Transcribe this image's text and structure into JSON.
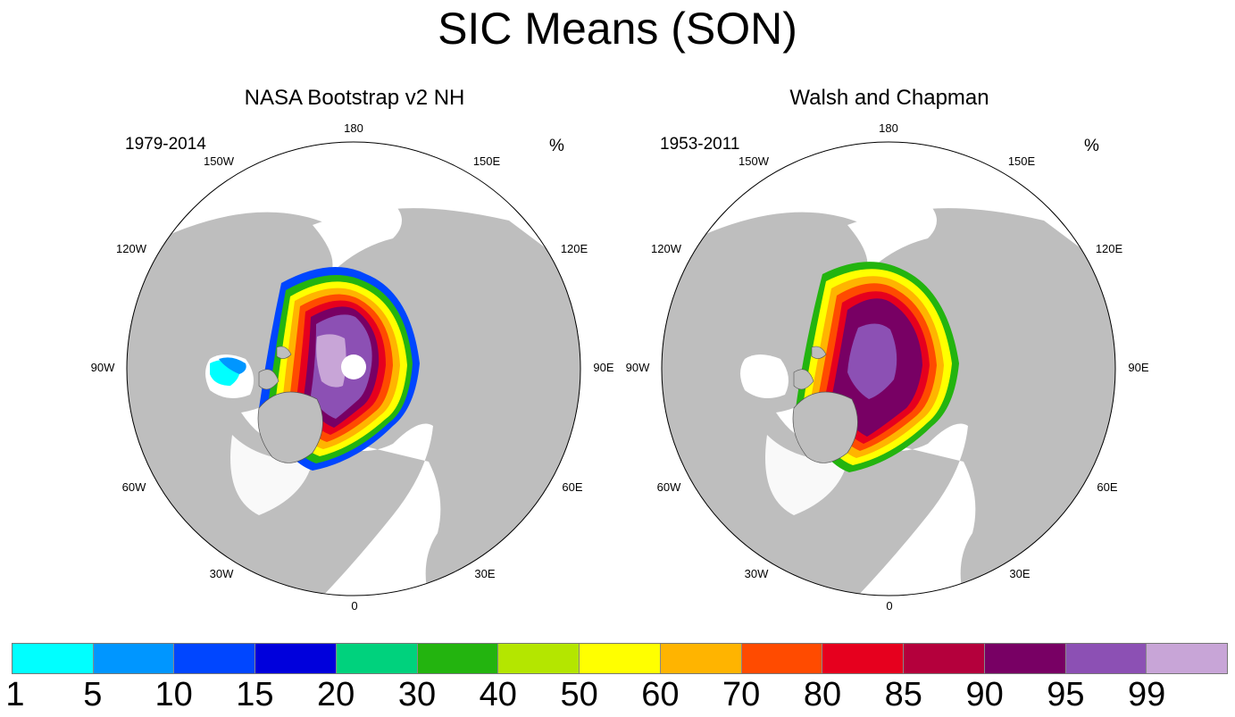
{
  "title": "SIC Means (SON)",
  "units": "%",
  "panels": [
    {
      "id": "left",
      "title": "NASA Bootstrap v2 NH",
      "period": "1979-2014",
      "lon_labels": {
        "l180": "180",
        "l150e": "150E",
        "l120e": "120E",
        "l90e": "90E",
        "l60e": "60E",
        "l30e": "30E",
        "l0": "0",
        "l30w": "30W",
        "l60w": "60W",
        "l90w": "90W",
        "l120w": "120W",
        "l150w": "150W"
      }
    },
    {
      "id": "right",
      "title": "Walsh and Chapman",
      "period": "1953-2011",
      "lon_labels": {
        "l180": "180",
        "l150e": "150E",
        "l120e": "120E",
        "l90e": "90E",
        "l60e": "60E",
        "l30e": "30E",
        "l0": "0",
        "l30w": "30W",
        "l60w": "60W",
        "l90w": "90W",
        "l120w": "120W",
        "l150w": "150W"
      }
    }
  ],
  "colorbar": {
    "colors": [
      "#00ffff",
      "#0096ff",
      "#0046ff",
      "#0000dc",
      "#00d27d",
      "#23b40f",
      "#b4e600",
      "#ffff00",
      "#ffb400",
      "#ff4b00",
      "#e6001e",
      "#b4003c",
      "#780064",
      "#8c50b4",
      "#c8a5d7"
    ],
    "labels": [
      "1",
      "5",
      "10",
      "15",
      "20",
      "30",
      "40",
      "50",
      "60",
      "70",
      "80",
      "85",
      "90",
      "95",
      "99"
    ]
  },
  "colors": {
    "land": "#bebebe",
    "ocean": "#ffffff",
    "coast": "#555555"
  }
}
